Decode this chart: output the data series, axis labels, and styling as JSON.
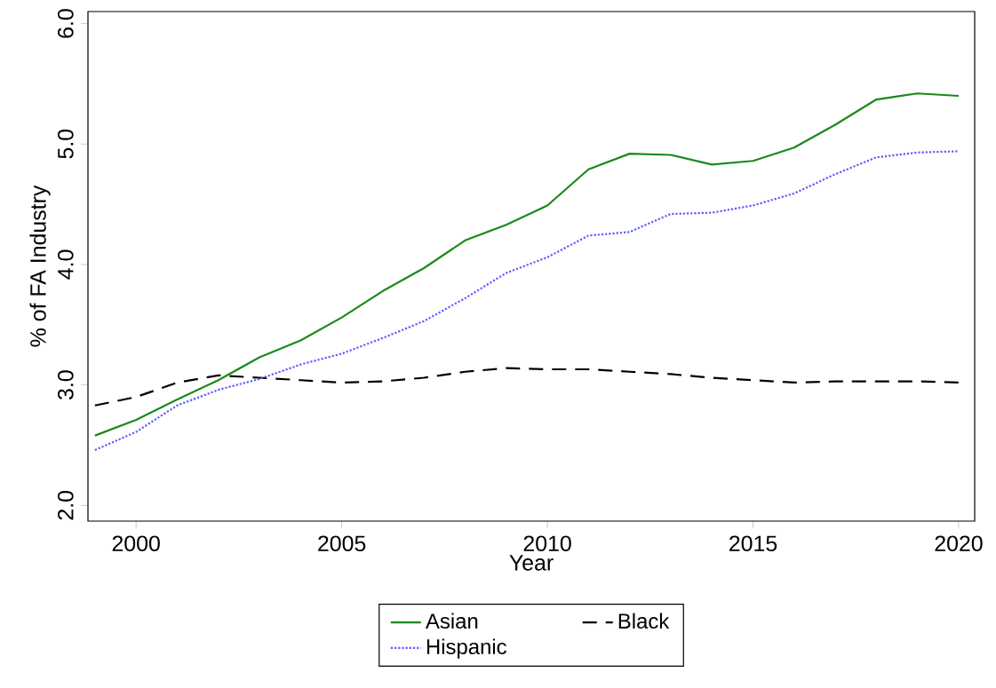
{
  "chart_data": {
    "type": "line",
    "xlabel": "Year",
    "ylabel": "% of FA Industry",
    "x": [
      1999,
      2000,
      2001,
      2002,
      2003,
      2004,
      2005,
      2006,
      2007,
      2008,
      2009,
      2010,
      2011,
      2012,
      2013,
      2014,
      2015,
      2016,
      2017,
      2018,
      2019,
      2020
    ],
    "series": [
      {
        "name": "Asian",
        "color": "#1a8a1a",
        "line_style": "solid",
        "values": [
          2.58,
          2.71,
          2.88,
          3.04,
          3.23,
          3.37,
          3.56,
          3.78,
          3.97,
          4.2,
          4.33,
          4.49,
          4.79,
          4.92,
          4.91,
          4.83,
          4.86,
          4.97,
          5.16,
          5.37,
          5.42,
          5.4
        ]
      },
      {
        "name": "Black",
        "color": "#000000",
        "line_style": "dashed",
        "values": [
          2.83,
          2.9,
          3.02,
          3.08,
          3.06,
          3.04,
          3.02,
          3.03,
          3.06,
          3.11,
          3.14,
          3.13,
          3.13,
          3.11,
          3.09,
          3.06,
          3.04,
          3.02,
          3.03,
          3.03,
          3.03,
          3.02
        ]
      },
      {
        "name": "Hispanic",
        "color": "#5a5aff",
        "line_style": "dotted",
        "values": [
          2.46,
          2.61,
          2.83,
          2.96,
          3.05,
          3.17,
          3.26,
          3.39,
          3.53,
          3.72,
          3.93,
          4.06,
          4.24,
          4.27,
          4.42,
          4.43,
          4.49,
          4.59,
          4.75,
          4.89,
          4.93,
          4.94
        ]
      }
    ],
    "xlim": [
      1998.83,
      2020.39
    ],
    "ylim": [
      1.87,
      6.1
    ],
    "xticks": [
      2000,
      2005,
      2010,
      2015,
      2020
    ],
    "yticks": [
      {
        "value": 2,
        "label": "2.0"
      },
      {
        "value": 3,
        "label": "3.0"
      },
      {
        "value": 4,
        "label": "4.0"
      },
      {
        "value": 5,
        "label": "5.0"
      },
      {
        "value": 6,
        "label": "6.0"
      }
    ],
    "grid": false,
    "legend": "bottom",
    "marker": "none"
  }
}
